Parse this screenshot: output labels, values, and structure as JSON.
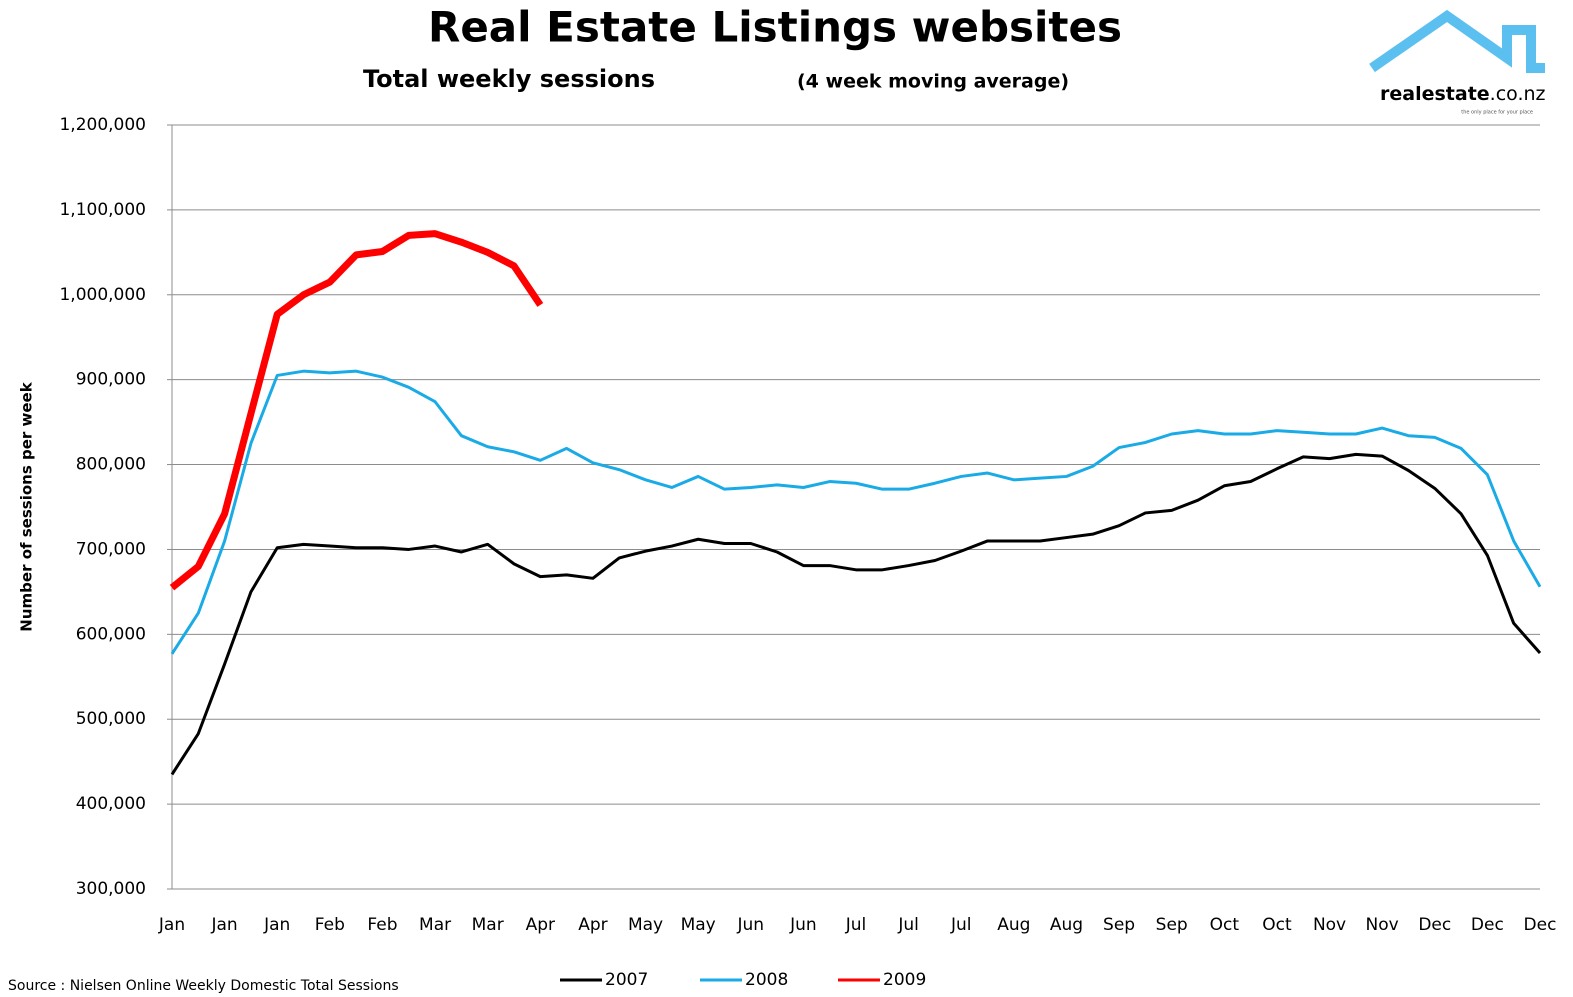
{
  "chart_data": {
    "type": "line",
    "title": "Real Estate Listings websites",
    "subtitle": "Total weekly sessions",
    "subtitle_note": "(4 week moving average)",
    "y_label": "Number of sessions  per week",
    "source": "Source : Nielsen Online Weekly Domestic Total Sessions",
    "logo": {
      "name": "realestate",
      "domain": ".co.nz",
      "tagline": "the only place for your place"
    },
    "categories": [
      "Jan",
      null,
      "Jan",
      null,
      "Jan",
      null,
      "Feb",
      null,
      "Feb",
      null,
      "Mar",
      null,
      "Mar",
      null,
      "Apr",
      null,
      "Apr",
      null,
      "May",
      null,
      "May",
      null,
      "Jun",
      null,
      "Jun",
      null,
      "Jul",
      null,
      "Jul",
      null,
      "Jul",
      null,
      "Aug",
      null,
      "Aug",
      null,
      "Sep",
      null,
      "Sep",
      null,
      "Oct",
      null,
      "Oct",
      null,
      "Nov",
      null,
      "Nov",
      null,
      "Dec",
      null,
      "Dec",
      null,
      "Dec"
    ],
    "series": [
      {
        "name": "2007",
        "color": "#000000",
        "width": 3,
        "values": [
          435000,
          483000,
          565000,
          650000,
          702000,
          706000,
          704000,
          702000,
          702000,
          700000,
          704000,
          697000,
          706000,
          683000,
          668000,
          670000,
          666000,
          690000,
          698000,
          704000,
          712000,
          707000,
          707000,
          697000,
          681000,
          681000,
          676000,
          676000,
          681000,
          687000,
          698000,
          710000,
          710000,
          710000,
          714000,
          718000,
          728000,
          743000,
          746000,
          758000,
          775000,
          780000,
          795000,
          809000,
          807000,
          812000,
          810000,
          793000,
          772000,
          742000,
          693000,
          613000,
          578000
        ]
      },
      {
        "name": "2008",
        "color": "#1aabe6",
        "width": 3,
        "values": [
          577000,
          625000,
          710000,
          825000,
          905000,
          910000,
          908000,
          910000,
          903000,
          891000,
          874000,
          834000,
          821000,
          815000,
          805000,
          819000,
          802000,
          794000,
          782000,
          773000,
          786000,
          771000,
          773000,
          776000,
          773000,
          780000,
          778000,
          771000,
          771000,
          778000,
          786000,
          790000,
          782000,
          784000,
          786000,
          798000,
          820000,
          826000,
          836000,
          840000,
          836000,
          836000,
          840000,
          838000,
          836000,
          836000,
          843000,
          834000,
          832000,
          819000,
          788000,
          710000,
          656000
        ]
      },
      {
        "name": "2009",
        "color": "#ff0000",
        "width": 7,
        "values": [
          655000,
          680000,
          742000,
          860000,
          977000,
          1000000,
          1015000,
          1047000,
          1051000,
          1070000,
          1072000,
          1062000,
          1050000,
          1034000,
          988000,
          null,
          null,
          null,
          null,
          null,
          null,
          null,
          null,
          null,
          null,
          null,
          null,
          null,
          null,
          null,
          null,
          null,
          null,
          null,
          null,
          null,
          null,
          null,
          null,
          null,
          null,
          null,
          null,
          null,
          null,
          null,
          null,
          null,
          null,
          null,
          null,
          null,
          null
        ]
      }
    ],
    "ylim": [
      300000,
      1200000
    ],
    "yticks": [
      {
        "value": 300000,
        "label": "300,000"
      },
      {
        "value": 400000,
        "label": "400,000"
      },
      {
        "value": 500000,
        "label": "500,000"
      },
      {
        "value": 600000,
        "label": "600,000"
      },
      {
        "value": 700000,
        "label": "700,000"
      },
      {
        "value": 800000,
        "label": "800,000"
      },
      {
        "value": 900000,
        "label": "900,000"
      },
      {
        "value": 1000000,
        "label": "1,000,000"
      },
      {
        "value": 1100000,
        "label": "1,100,000"
      },
      {
        "value": 1200000,
        "label": "1,200,000"
      }
    ],
    "grid": true,
    "legend": "bottom"
  }
}
